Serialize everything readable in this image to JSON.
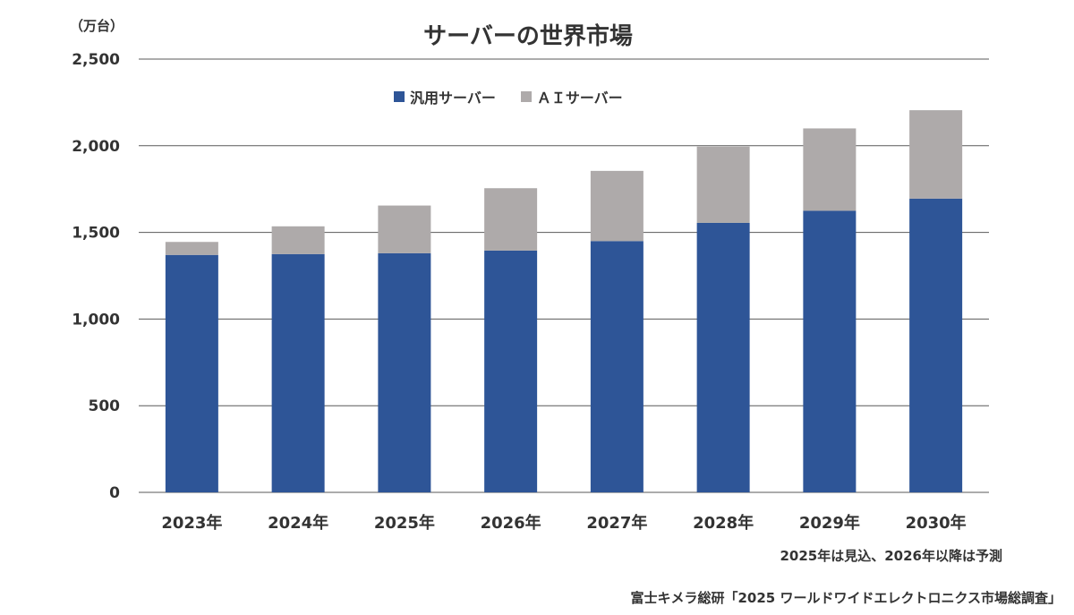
{
  "unit_label": "（万台）",
  "note": "2025年は見込、2026年以降は予測",
  "source": "富士キメラ総研「2025 ワールドワイドエレクトロニクス市場総調査」",
  "colors": {
    "general": "#2e5597",
    "ai": "#aeaaaa",
    "grid": "#595959"
  },
  "chart_data": {
    "type": "bar",
    "stacked": true,
    "title": "サーバーの世界市場",
    "categories": [
      "2023年",
      "2024年",
      "2025年",
      "2026年",
      "2027年",
      "2028年",
      "2029年",
      "2030年"
    ],
    "series": [
      {
        "name": "汎用サーバー",
        "values": [
          1370,
          1375,
          1380,
          1395,
          1450,
          1555,
          1625,
          1695
        ]
      },
      {
        "name": "ＡＩサーバー",
        "values": [
          75,
          160,
          275,
          360,
          405,
          440,
          475,
          510
        ]
      }
    ],
    "ylim": [
      0,
      2500
    ],
    "yticks": [
      "0",
      "500",
      "1,000",
      "1,500",
      "2,000",
      "2,500"
    ],
    "ytick_values": [
      0,
      500,
      1000,
      1500,
      2000,
      2500
    ],
    "grid": true,
    "legend_position": "top-center"
  }
}
